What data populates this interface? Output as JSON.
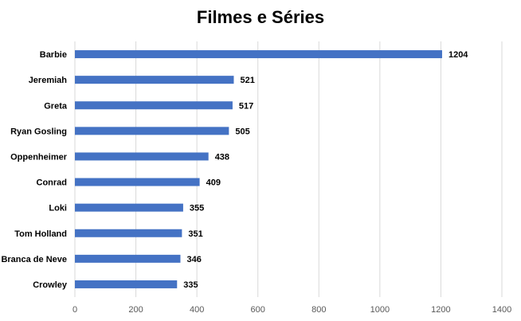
{
  "chart_data": {
    "type": "bar",
    "orientation": "horizontal",
    "title": "Filmes e Séries",
    "categories": [
      "Barbie",
      "Jeremiah",
      "Greta",
      "Ryan Gosling",
      "Oppenheimer",
      "Conrad",
      "Loki",
      "Tom Holland",
      "Branca de Neve",
      "Crowley"
    ],
    "values": [
      1204,
      521,
      517,
      505,
      438,
      409,
      355,
      351,
      346,
      335
    ],
    "xlim": [
      0,
      1400
    ],
    "xticks": [
      0,
      200,
      400,
      600,
      800,
      1000,
      1200,
      1400
    ],
    "grid": true,
    "legend": "none",
    "colors": {
      "bar": "#4472c4"
    }
  }
}
